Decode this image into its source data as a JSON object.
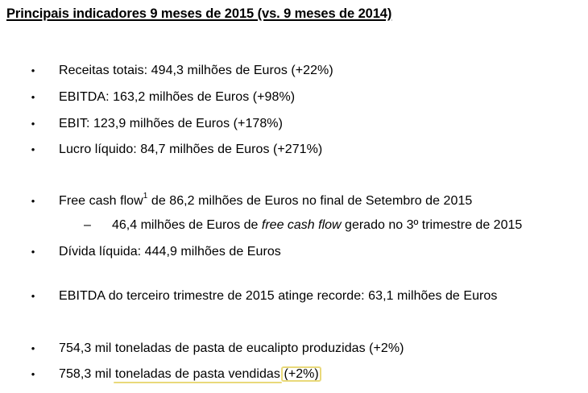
{
  "title": "Principais indicadores 9 meses de 2015 (vs. 9 meses de 2014)",
  "bullet_symbol": "•",
  "dash_symbol": "–",
  "items": [
    {
      "text": "Receitas totais: 494,3 milhões de Euros (+22%)"
    },
    {
      "text": "EBITDA: 163,2 milhões de Euros (+98%)"
    },
    {
      "text": "EBIT: 123,9 milhões de Euros (+178%)"
    },
    {
      "text": "Lucro líquido: 84,7 milhões de Euros (+271%)"
    },
    {
      "text_a": "Free cash flow",
      "footnote": "1",
      "text_b": " de 86,2 milhões de Euros no final de Setembro de 2015",
      "sub": {
        "text_a": "46,4 milhões de Euros de ",
        "text_em": "free cash flow",
        "text_b": " gerado no 3º trimestre de 2015"
      }
    },
    {
      "text": "Dívida líquida: 444,9 milhões de Euros"
    },
    {
      "text": "EBITDA do terceiro trimestre de 2015 atinge recorde: 63,1 milhões de Euros"
    },
    {
      "text": "754,3 mil toneladas de pasta de eucalipto produzidas (+2%)"
    },
    {
      "text_a": "758,3 mil ",
      "text_hl": "toneladas de pasta vendidas",
      "text_gap": " ",
      "text_box": "(+2%)"
    }
  ],
  "highlight_color": "#e9d97a"
}
